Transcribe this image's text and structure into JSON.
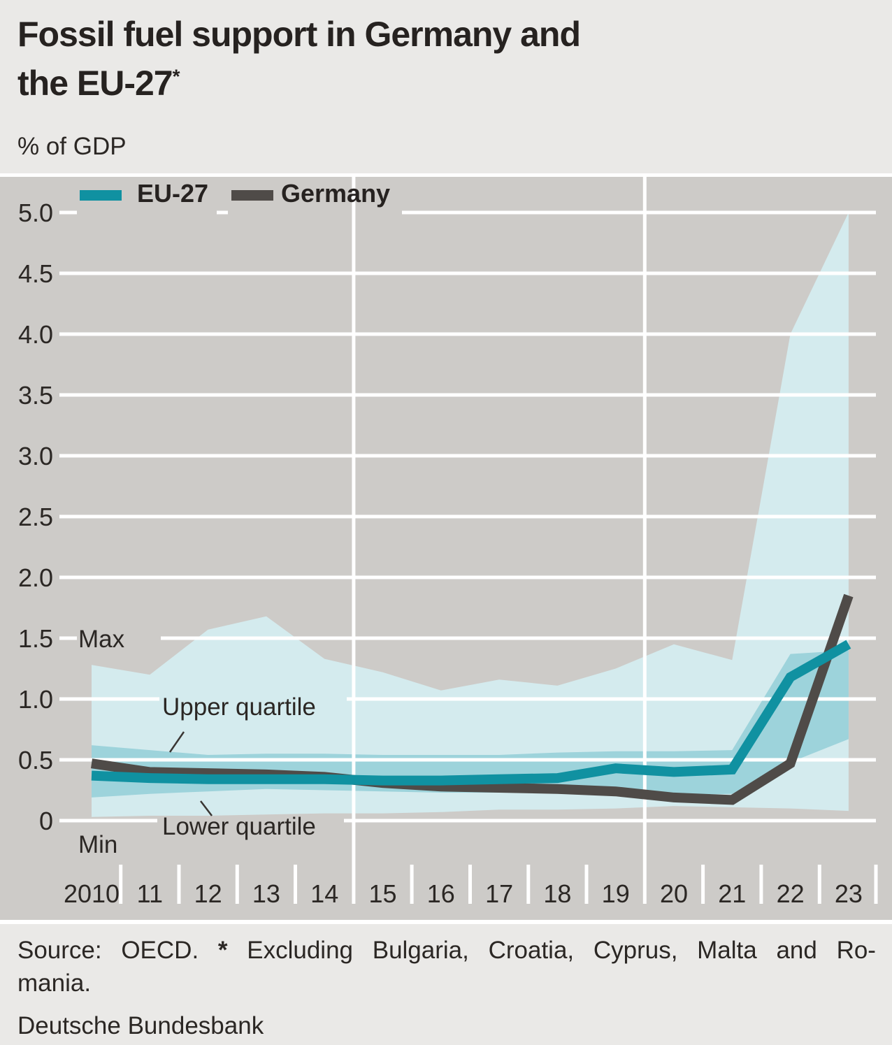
{
  "header": {
    "title_line1": "Fossil fuel support in Germany and",
    "title_line2": "the EU-27",
    "title_superscript": "*",
    "unit_label": "% of GDP"
  },
  "legend": {
    "eu27_label": "EU-27",
    "germany_label": "Germany"
  },
  "annotations": {
    "max": "Max",
    "upper_quartile": "Upper quartile",
    "lower_quartile": "Lower quartile",
    "min": "Min"
  },
  "footer": {
    "source": "Source: OECD.",
    "asterisk": "*",
    "note": "Excluding Bulgaria, Croatia, Cyprus, Malta and Ro-",
    "note_continued": "mania.",
    "publisher": "Deutsche Bundesbank"
  },
  "colors": {
    "band_light": "#d4ebee",
    "band_medium": "#9dd3db",
    "eu27_line": "#1091a1",
    "germany_line": "#4f4b48",
    "plot_background": "#cdcbc8",
    "page_background": "#eae9e7",
    "gridline": "#ffffff",
    "text": "#2b2724"
  },
  "chart_data": {
    "type": "area",
    "title": "Fossil fuel support in Germany and the EU-27*",
    "ylabel": "% of GDP",
    "ylim": [
      0,
      5.0
    ],
    "grid": true,
    "legend_position": "top-left",
    "x": [
      2010,
      2011,
      2012,
      2013,
      2014,
      2015,
      2016,
      2017,
      2018,
      2019,
      2020,
      2021,
      2022,
      2023
    ],
    "x_tick_labels": [
      "2010",
      "11",
      "12",
      "13",
      "14",
      "15",
      "16",
      "17",
      "18",
      "19",
      "20",
      "21",
      "22",
      "23"
    ],
    "y_tick_labels": [
      "5.0",
      "4.5",
      "4.0",
      "3.5",
      "3.0",
      "2.5",
      "2.0",
      "1.5",
      "1.0",
      "0.5",
      "0"
    ],
    "y_tick_values": [
      5.0,
      4.5,
      4.0,
      3.5,
      3.0,
      2.5,
      2.0,
      1.5,
      1.0,
      0.5,
      0
    ],
    "series": [
      {
        "name": "Max",
        "role": "band-upper-max",
        "values": [
          1.28,
          1.2,
          1.57,
          1.68,
          1.33,
          1.22,
          1.07,
          1.16,
          1.11,
          1.25,
          1.45,
          1.32,
          4.0,
          5.0
        ]
      },
      {
        "name": "Upper quartile",
        "role": "band-upper",
        "values": [
          0.62,
          0.58,
          0.54,
          0.55,
          0.55,
          0.54,
          0.54,
          0.54,
          0.56,
          0.57,
          0.57,
          0.58,
          1.37,
          1.4
        ]
      },
      {
        "name": "EU-27",
        "role": "line",
        "values": [
          0.37,
          0.35,
          0.34,
          0.34,
          0.34,
          0.33,
          0.33,
          0.34,
          0.35,
          0.43,
          0.4,
          0.42,
          1.18,
          1.45
        ]
      },
      {
        "name": "Germany",
        "role": "line",
        "values": [
          0.47,
          0.4,
          0.39,
          0.38,
          0.36,
          0.31,
          0.28,
          0.27,
          0.26,
          0.24,
          0.19,
          0.17,
          0.47,
          1.85
        ]
      },
      {
        "name": "Lower quartile",
        "role": "band-lower",
        "values": [
          0.19,
          0.22,
          0.24,
          0.26,
          0.25,
          0.24,
          0.23,
          0.23,
          0.24,
          0.23,
          0.21,
          0.22,
          0.48,
          0.67
        ]
      },
      {
        "name": "Min",
        "role": "band-lower-min",
        "values": [
          0.03,
          0.04,
          0.04,
          0.05,
          0.06,
          0.06,
          0.07,
          0.09,
          0.09,
          0.1,
          0.12,
          0.11,
          0.1,
          0.08
        ]
      }
    ],
    "bands": [
      {
        "upper": "Max",
        "lower": "Min",
        "color_key": "band_light"
      },
      {
        "upper": "Upper quartile",
        "lower": "Lower quartile",
        "color_key": "band_medium"
      }
    ]
  }
}
